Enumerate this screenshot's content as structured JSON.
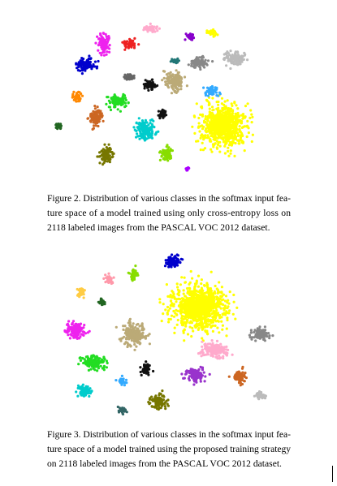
{
  "captions": [
    {
      "lines": [
        "Figure 2. Distribution of various classes in the softmax input fea-",
        "ture space of a model trained using only cross-entropy loss on",
        "2118 labeled images from the PASCAL VOC 2012 dataset."
      ]
    },
    {
      "lines": [
        "Figure 3. Distribution of various classes in the softmax input fea-",
        "ture space of a model trained using the proposed training strategy",
        "on 2118 labeled images from the PASCAL VOC 2012 dataset."
      ]
    }
  ]
}
